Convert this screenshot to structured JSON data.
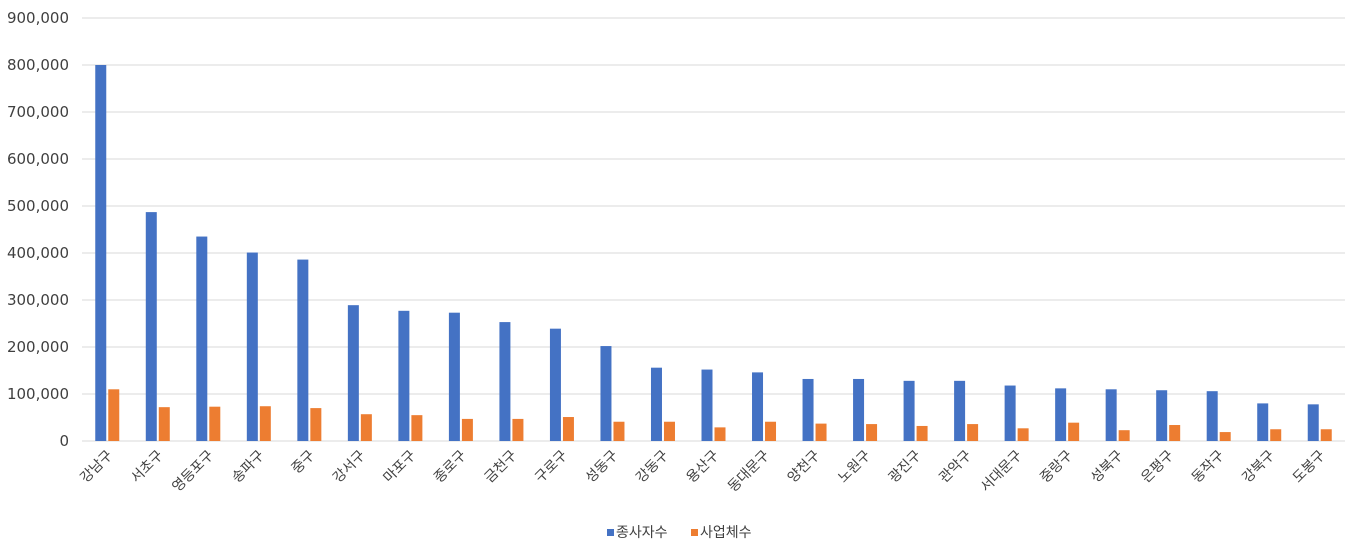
{
  "chart_data": {
    "type": "bar",
    "title": "",
    "xlabel": "",
    "ylabel": "",
    "ylim": [
      0,
      900000
    ],
    "yticks": [
      0,
      100000,
      200000,
      300000,
      400000,
      500000,
      600000,
      700000,
      800000,
      900000
    ],
    "ytick_labels": [
      "0",
      "100,000",
      "200,000",
      "300,000",
      "400,000",
      "500,000",
      "600,000",
      "700,000",
      "800,000",
      "900,000"
    ],
    "grid": true,
    "legend_position": "bottom",
    "categories": [
      "강남구",
      "서초구",
      "영등포구",
      "송파구",
      "중구",
      "강서구",
      "마포구",
      "종로구",
      "금천구",
      "구로구",
      "성동구",
      "강동구",
      "용산구",
      "동대문구",
      "양천구",
      "노원구",
      "광진구",
      "관악구",
      "서대문구",
      "중랑구",
      "성북구",
      "은평구",
      "동작구",
      "강북구",
      "도봉구"
    ],
    "series": [
      {
        "name": "종사자수",
        "color": "#4472c4",
        "values": [
          800000,
          487000,
          435000,
          401000,
          386000,
          289000,
          277000,
          273000,
          253000,
          239000,
          202000,
          156000,
          152000,
          146000,
          132000,
          132000,
          128000,
          128000,
          118000,
          112000,
          110000,
          108000,
          106000,
          80000,
          78000
        ]
      },
      {
        "name": "사업체수",
        "color": "#ed7d31",
        "values": [
          110000,
          72000,
          73000,
          74000,
          70000,
          57000,
          55000,
          47000,
          47000,
          51000,
          41000,
          41000,
          29000,
          41000,
          37000,
          36000,
          32000,
          36000,
          27000,
          39000,
          23000,
          34000,
          19000,
          25000,
          25000
        ]
      }
    ]
  }
}
